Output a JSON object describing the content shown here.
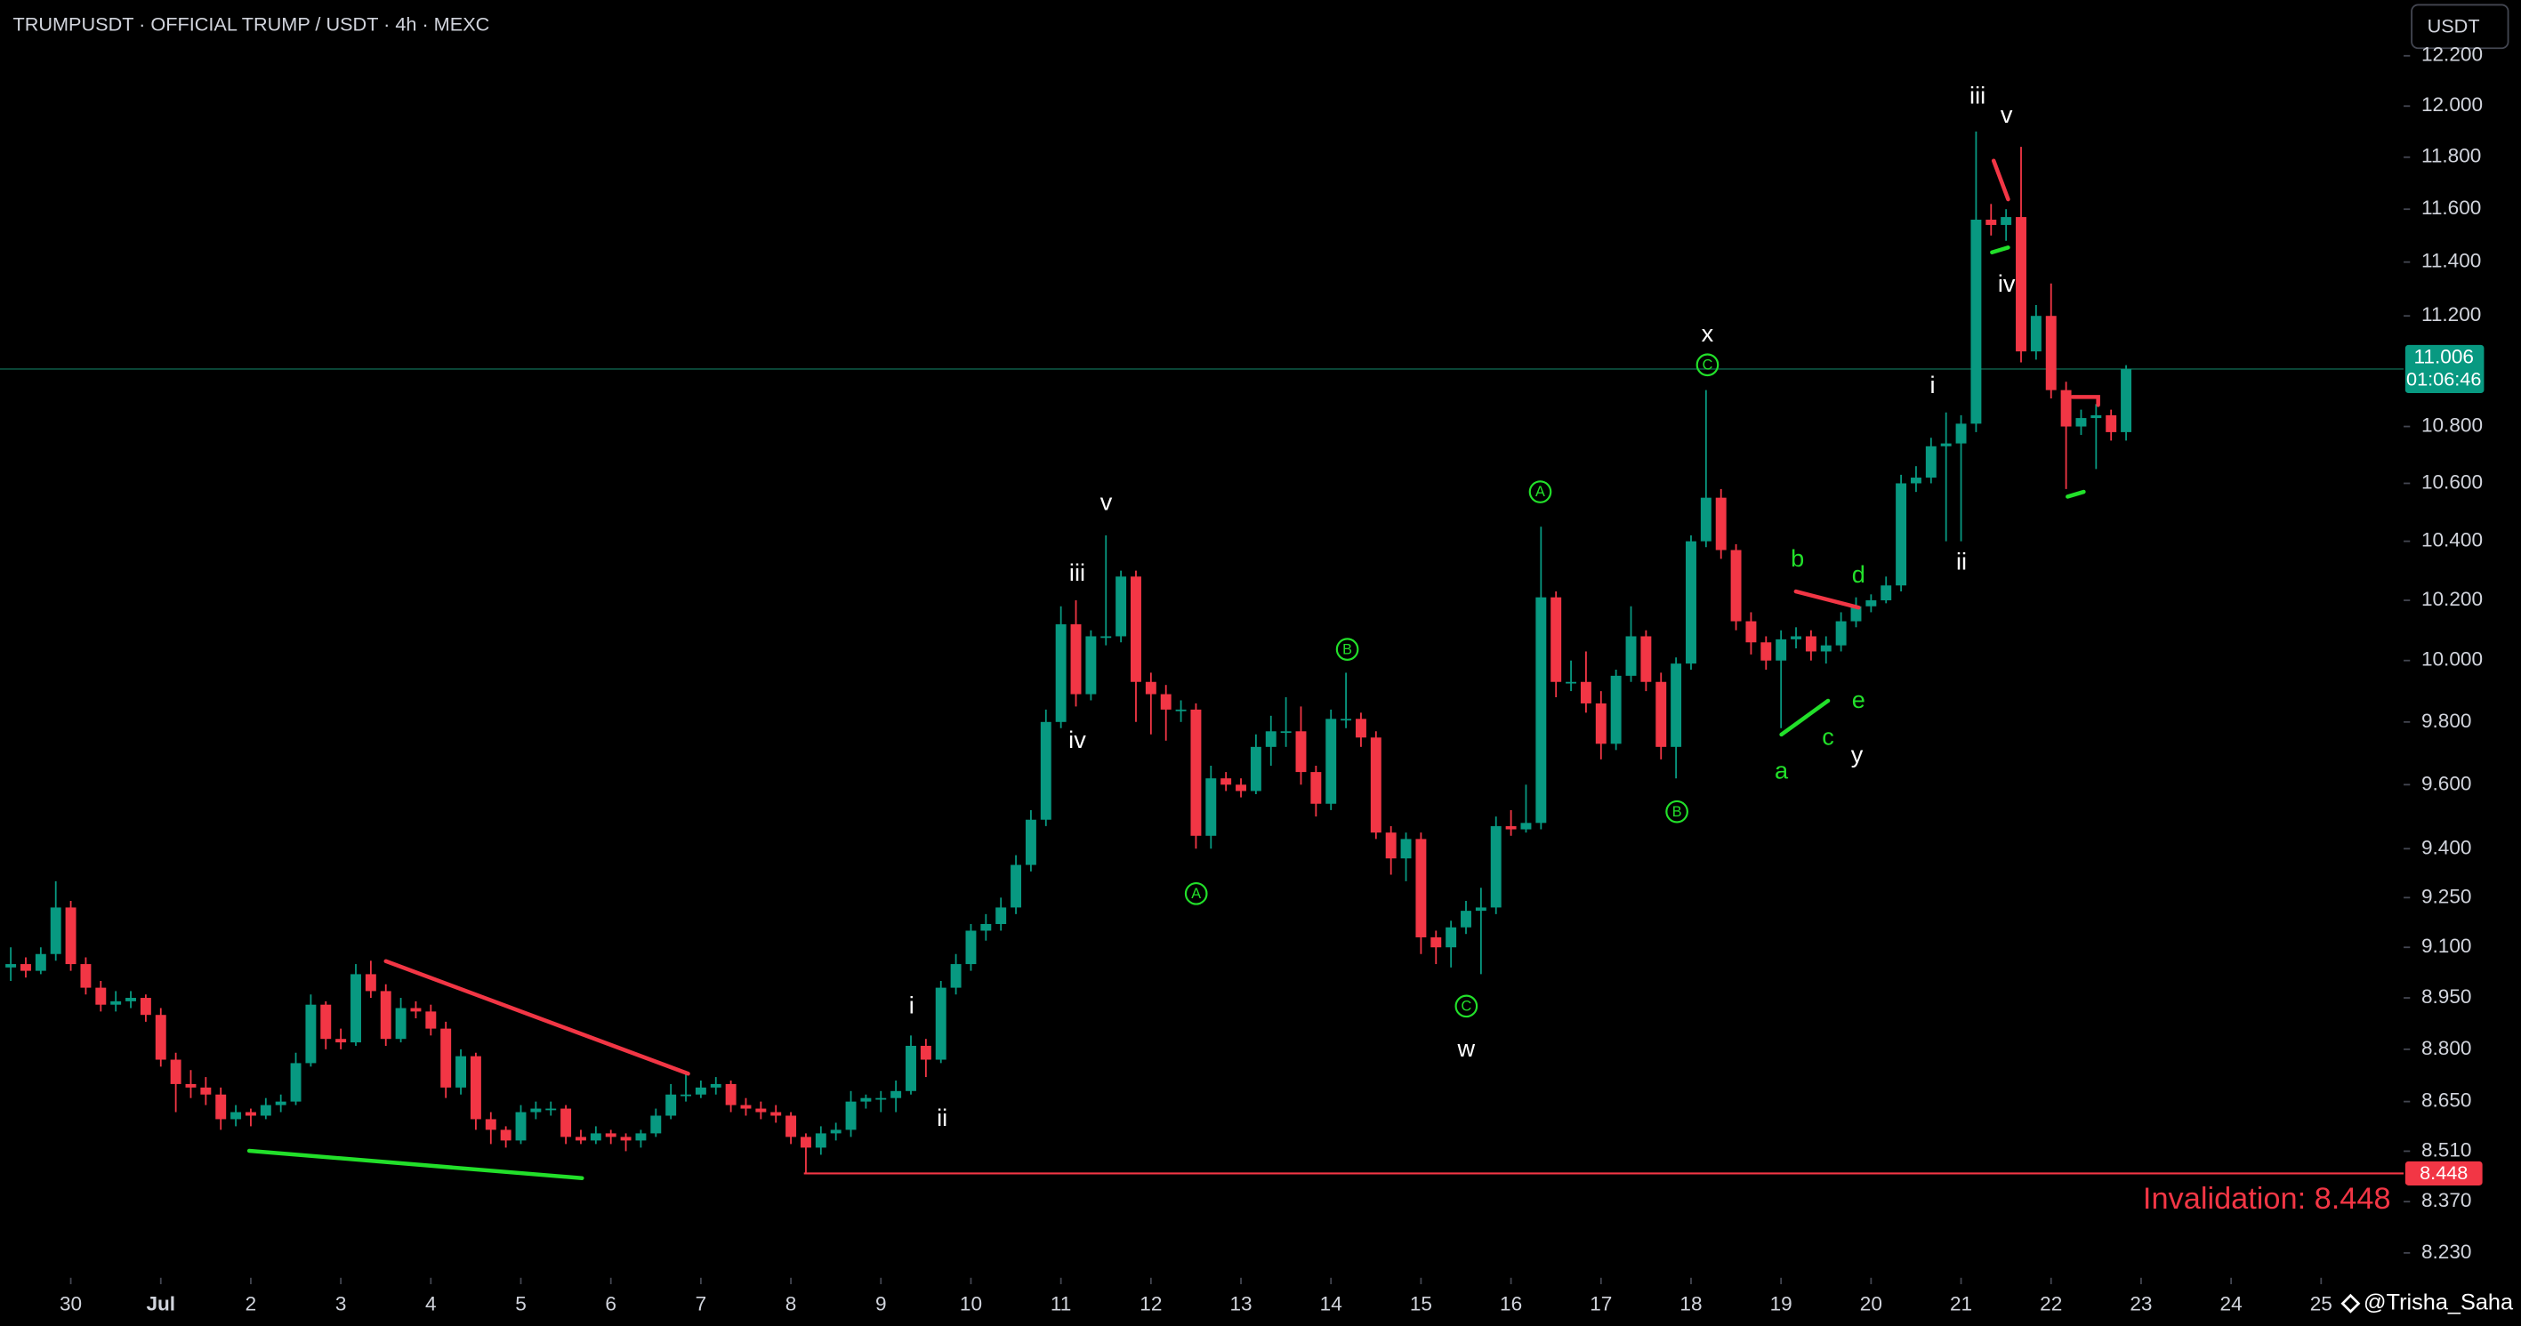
{
  "chart_data": {
    "type": "candlestick",
    "title": "TRUMPUSDT · OFFICIAL TRUMP / USDT · 4h · MEXC",
    "currency_button": "USDT",
    "watermark": "@Trisha_Saha",
    "log_scale": true,
    "up_color": "#089981",
    "down_color": "#f23645",
    "xlim": [
      -0.718,
      159.5
    ],
    "ylim": [
      8.163,
      12.426
    ],
    "xticks": [
      {
        "value": 4,
        "label": "30"
      },
      {
        "value": 10,
        "label": "Jul"
      },
      {
        "value": 16,
        "label": "2"
      },
      {
        "value": 22,
        "label": "3"
      },
      {
        "value": 28,
        "label": "4"
      },
      {
        "value": 34,
        "label": "5"
      },
      {
        "value": 40,
        "label": "6"
      },
      {
        "value": 46,
        "label": "7"
      },
      {
        "value": 52,
        "label": "8"
      },
      {
        "value": 58,
        "label": "9"
      },
      {
        "value": 64,
        "label": "10"
      },
      {
        "value": 70,
        "label": "11"
      },
      {
        "value": 76,
        "label": "12"
      },
      {
        "value": 82,
        "label": "13"
      },
      {
        "value": 88,
        "label": "14"
      },
      {
        "value": 94,
        "label": "15"
      },
      {
        "value": 100,
        "label": "16"
      },
      {
        "value": 106,
        "label": "17"
      },
      {
        "value": 112,
        "label": "18"
      },
      {
        "value": 118,
        "label": "19"
      },
      {
        "value": 124,
        "label": "20"
      },
      {
        "value": 130,
        "label": "21"
      },
      {
        "value": 136,
        "label": "22"
      },
      {
        "value": 142,
        "label": "23"
      },
      {
        "value": 148,
        "label": "24"
      },
      {
        "value": 154,
        "label": "25"
      }
    ],
    "yticks": [
      {
        "value": 8.23,
        "label": "8.230"
      },
      {
        "value": 8.37,
        "label": "8.370"
      },
      {
        "value": 8.51,
        "label": "8.510"
      },
      {
        "value": 8.65,
        "label": "8.650"
      },
      {
        "value": 8.8,
        "label": "8.800"
      },
      {
        "value": 8.95,
        "label": "8.950"
      },
      {
        "value": 9.1,
        "label": "9.100"
      },
      {
        "value": 9.25,
        "label": "9.250"
      },
      {
        "value": 9.4,
        "label": "9.400"
      },
      {
        "value": 9.6,
        "label": "9.600"
      },
      {
        "value": 9.8,
        "label": "9.800"
      },
      {
        "value": 10,
        "label": "10.000"
      },
      {
        "value": 10.2,
        "label": "10.200"
      },
      {
        "value": 10.4,
        "label": "10.400"
      },
      {
        "value": 10.6,
        "label": "10.600"
      },
      {
        "value": 10.8,
        "label": "10.800"
      },
      {
        "value": 11.2,
        "label": "11.200"
      },
      {
        "value": 11.4,
        "label": "11.400"
      },
      {
        "value": 11.6,
        "label": "11.600"
      },
      {
        "value": 11.8,
        "label": "11.800"
      },
      {
        "value": 12,
        "label": "12.000"
      },
      {
        "value": 12.2,
        "label": "12.200"
      }
    ],
    "ohlc": [
      [
        9.04,
        9.1,
        9.0,
        9.05
      ],
      [
        9.05,
        9.07,
        9.01,
        9.03
      ],
      [
        9.03,
        9.1,
        9.02,
        9.08
      ],
      [
        9.08,
        9.3,
        9.06,
        9.22
      ],
      [
        9.22,
        9.24,
        9.03,
        9.05
      ],
      [
        9.05,
        9.07,
        8.96,
        8.98
      ],
      [
        8.98,
        9.0,
        8.91,
        8.93
      ],
      [
        8.93,
        8.97,
        8.91,
        8.94
      ],
      [
        8.94,
        8.97,
        8.92,
        8.95
      ],
      [
        8.95,
        8.96,
        8.88,
        8.9
      ],
      [
        8.9,
        8.92,
        8.75,
        8.77
      ],
      [
        8.77,
        8.79,
        8.62,
        8.7
      ],
      [
        8.7,
        8.74,
        8.66,
        8.69
      ],
      [
        8.69,
        8.72,
        8.64,
        8.67
      ],
      [
        8.67,
        8.69,
        8.57,
        8.6
      ],
      [
        8.6,
        8.64,
        8.58,
        8.62
      ],
      [
        8.62,
        8.63,
        8.58,
        8.61
      ],
      [
        8.61,
        8.66,
        8.6,
        8.64
      ],
      [
        8.64,
        8.67,
        8.62,
        8.65
      ],
      [
        8.65,
        8.79,
        8.64,
        8.76
      ],
      [
        8.76,
        8.96,
        8.75,
        8.93
      ],
      [
        8.93,
        8.94,
        8.8,
        8.83
      ],
      [
        8.83,
        8.86,
        8.8,
        8.82
      ],
      [
        8.82,
        9.05,
        8.81,
        9.02
      ],
      [
        9.02,
        9.06,
        8.95,
        8.97
      ],
      [
        8.97,
        8.99,
        8.81,
        8.83
      ],
      [
        8.83,
        8.95,
        8.82,
        8.92
      ],
      [
        8.92,
        8.94,
        8.89,
        8.91
      ],
      [
        8.91,
        8.93,
        8.84,
        8.86
      ],
      [
        8.86,
        8.88,
        8.66,
        8.69
      ],
      [
        8.69,
        8.8,
        8.67,
        8.78
      ],
      [
        8.78,
        8.79,
        8.57,
        8.6
      ],
      [
        8.6,
        8.62,
        8.53,
        8.57
      ],
      [
        8.57,
        8.58,
        8.52,
        8.54
      ],
      [
        8.54,
        8.64,
        8.53,
        8.62
      ],
      [
        8.62,
        8.65,
        8.6,
        8.63
      ],
      [
        8.63,
        8.65,
        8.61,
        8.63
      ],
      [
        8.63,
        8.64,
        8.53,
        8.55
      ],
      [
        8.55,
        8.57,
        8.53,
        8.54
      ],
      [
        8.54,
        8.58,
        8.53,
        8.56
      ],
      [
        8.56,
        8.57,
        8.53,
        8.55
      ],
      [
        8.55,
        8.56,
        8.51,
        8.54
      ],
      [
        8.54,
        8.57,
        8.52,
        8.56
      ],
      [
        8.56,
        8.63,
        8.55,
        8.61
      ],
      [
        8.61,
        8.7,
        8.6,
        8.67
      ],
      [
        8.67,
        8.73,
        8.65,
        8.67
      ],
      [
        8.67,
        8.71,
        8.66,
        8.69
      ],
      [
        8.69,
        8.72,
        8.67,
        8.7
      ],
      [
        8.7,
        8.71,
        8.62,
        8.64
      ],
      [
        8.64,
        8.66,
        8.61,
        8.63
      ],
      [
        8.63,
        8.65,
        8.6,
        8.62
      ],
      [
        8.62,
        8.64,
        8.59,
        8.61
      ],
      [
        8.61,
        8.62,
        8.53,
        8.55
      ],
      [
        8.55,
        8.56,
        8.45,
        8.52
      ],
      [
        8.52,
        8.58,
        8.5,
        8.56
      ],
      [
        8.56,
        8.59,
        8.54,
        8.57
      ],
      [
        8.57,
        8.68,
        8.55,
        8.65
      ],
      [
        8.65,
        8.67,
        8.63,
        8.66
      ],
      [
        8.66,
        8.68,
        8.62,
        8.66
      ],
      [
        8.66,
        8.71,
        8.62,
        8.68
      ],
      [
        8.68,
        8.84,
        8.67,
        8.81
      ],
      [
        8.81,
        8.83,
        8.72,
        8.77
      ],
      [
        8.77,
        9.0,
        8.76,
        8.98
      ],
      [
        8.98,
        9.08,
        8.96,
        9.05
      ],
      [
        9.05,
        9.17,
        9.03,
        9.15
      ],
      [
        9.15,
        9.2,
        9.12,
        9.17
      ],
      [
        9.17,
        9.25,
        9.15,
        9.22
      ],
      [
        9.22,
        9.38,
        9.2,
        9.35
      ],
      [
        9.35,
        9.52,
        9.33,
        9.49
      ],
      [
        9.49,
        9.84,
        9.47,
        9.8
      ],
      [
        9.8,
        10.18,
        9.78,
        10.12
      ],
      [
        10.12,
        10.2,
        9.85,
        9.89
      ],
      [
        9.89,
        10.1,
        9.87,
        10.08
      ],
      [
        10.08,
        10.42,
        10.05,
        10.08
      ],
      [
        10.08,
        10.3,
        10.06,
        10.28
      ],
      [
        10.28,
        10.3,
        9.8,
        9.93
      ],
      [
        9.93,
        9.96,
        9.76,
        9.89
      ],
      [
        9.89,
        9.92,
        9.74,
        9.84
      ],
      [
        9.84,
        9.87,
        9.8,
        9.84
      ],
      [
        9.84,
        9.86,
        9.4,
        9.44
      ],
      [
        9.44,
        9.66,
        9.4,
        9.62
      ],
      [
        9.62,
        9.64,
        9.58,
        9.6
      ],
      [
        9.6,
        9.62,
        9.56,
        9.58
      ],
      [
        9.58,
        9.76,
        9.57,
        9.72
      ],
      [
        9.72,
        9.82,
        9.66,
        9.77
      ],
      [
        9.77,
        9.88,
        9.72,
        9.77
      ],
      [
        9.77,
        9.85,
        9.6,
        9.64
      ],
      [
        9.64,
        9.66,
        9.5,
        9.54
      ],
      [
        9.54,
        9.84,
        9.52,
        9.81
      ],
      [
        9.81,
        9.96,
        9.78,
        9.81
      ],
      [
        9.81,
        9.83,
        9.72,
        9.75
      ],
      [
        9.75,
        9.77,
        9.43,
        9.45
      ],
      [
        9.45,
        9.47,
        9.32,
        9.37
      ],
      [
        9.37,
        9.45,
        9.3,
        9.43
      ],
      [
        9.43,
        9.45,
        9.08,
        9.13
      ],
      [
        9.13,
        9.15,
        9.05,
        9.1
      ],
      [
        9.1,
        9.18,
        9.04,
        9.16
      ],
      [
        9.16,
        9.24,
        9.14,
        9.21
      ],
      [
        9.21,
        9.28,
        9.02,
        9.22
      ],
      [
        9.22,
        9.5,
        9.2,
        9.47
      ],
      [
        9.47,
        9.52,
        9.44,
        9.46
      ],
      [
        9.46,
        9.6,
        9.45,
        9.48
      ],
      [
        9.48,
        10.45,
        9.46,
        10.21
      ],
      [
        10.21,
        10.23,
        9.88,
        9.93
      ],
      [
        9.93,
        10.0,
        9.9,
        9.93
      ],
      [
        9.93,
        10.03,
        9.83,
        9.86
      ],
      [
        9.86,
        9.9,
        9.68,
        9.73
      ],
      [
        9.73,
        9.97,
        9.71,
        9.95
      ],
      [
        9.95,
        10.18,
        9.93,
        10.08
      ],
      [
        10.08,
        10.1,
        9.9,
        9.93
      ],
      [
        9.93,
        9.96,
        9.68,
        9.72
      ],
      [
        9.72,
        10.01,
        9.62,
        9.99
      ],
      [
        9.99,
        10.42,
        9.97,
        10.4
      ],
      [
        10.4,
        10.93,
        10.38,
        10.55
      ],
      [
        10.55,
        10.58,
        10.34,
        10.37
      ],
      [
        10.37,
        10.39,
        10.1,
        10.13
      ],
      [
        10.13,
        10.16,
        10.02,
        10.06
      ],
      [
        10.06,
        10.08,
        9.97,
        10.0
      ],
      [
        10.0,
        10.1,
        9.78,
        10.07
      ],
      [
        10.07,
        10.11,
        10.04,
        10.08
      ],
      [
        10.08,
        10.1,
        10.0,
        10.03
      ],
      [
        10.03,
        10.08,
        9.99,
        10.05
      ],
      [
        10.05,
        10.16,
        10.03,
        10.13
      ],
      [
        10.13,
        10.21,
        10.11,
        10.18
      ],
      [
        10.18,
        10.22,
        10.16,
        10.2
      ],
      [
        10.2,
        10.28,
        10.19,
        10.25
      ],
      [
        10.25,
        10.63,
        10.23,
        10.6
      ],
      [
        10.6,
        10.66,
        10.57,
        10.62
      ],
      [
        10.62,
        10.76,
        10.6,
        10.73
      ],
      [
        10.73,
        10.85,
        10.4,
        10.74
      ],
      [
        10.74,
        10.84,
        10.4,
        10.81
      ],
      [
        10.81,
        11.9,
        10.78,
        11.56
      ],
      [
        11.56,
        11.62,
        11.5,
        11.54
      ],
      [
        11.54,
        11.6,
        11.48,
        11.57
      ],
      [
        11.57,
        11.84,
        11.03,
        11.07
      ],
      [
        11.07,
        11.24,
        11.04,
        11.2
      ],
      [
        11.2,
        11.32,
        10.9,
        10.93
      ],
      [
        10.93,
        10.96,
        10.58,
        10.8
      ],
      [
        10.8,
        10.86,
        10.77,
        10.83
      ],
      [
        10.83,
        10.88,
        10.65,
        10.84
      ],
      [
        10.84,
        10.86,
        10.75,
        10.78
      ],
      [
        10.78,
        11.02,
        10.75,
        11.006
      ]
    ],
    "last_price": 11.006,
    "countdown": "01:06:46",
    "levels": [
      {
        "value": 8.448,
        "color": "#f23645"
      }
    ],
    "invalidation_text": "Invalidation: 8.448",
    "annotations": [
      {
        "text": "v",
        "color": "#ffffff"
      },
      {
        "text": "iii",
        "color": "#ffffff"
      },
      {
        "text": "iv",
        "color": "#ffffff"
      },
      {
        "text": "i",
        "color": "#ffffff"
      },
      {
        "text": "ii",
        "color": "#ffffff"
      },
      {
        "text": "x",
        "color": "#ffffff"
      },
      {
        "text": "w",
        "color": "#ffffff"
      },
      {
        "text": "y",
        "color": "#ffffff"
      },
      {
        "text": "i",
        "color": "#ffffff"
      },
      {
        "text": "ii",
        "color": "#ffffff"
      },
      {
        "text": "iii",
        "color": "#ffffff"
      },
      {
        "text": "v",
        "color": "#ffffff"
      },
      {
        "text": "iv",
        "color": "#ffffff"
      },
      {
        "text": "A",
        "color": "#22e02a",
        "circled": true
      },
      {
        "text": "B",
        "color": "#22e02a",
        "circled": true
      },
      {
        "text": "C",
        "color": "#22e02a",
        "circled": true
      },
      {
        "text": "A",
        "color": "#22e02a",
        "circled": true
      },
      {
        "text": "B",
        "color": "#22e02a",
        "circled": true
      },
      {
        "text": "C",
        "color": "#22e02a",
        "circled": true
      },
      {
        "text": "a",
        "color": "#22e02a"
      },
      {
        "text": "b",
        "color": "#22e02a"
      },
      {
        "text": "c",
        "color": "#22e02a"
      },
      {
        "text": "d",
        "color": "#22e02a"
      },
      {
        "text": "e",
        "color": "#22e02a"
      }
    ]
  }
}
